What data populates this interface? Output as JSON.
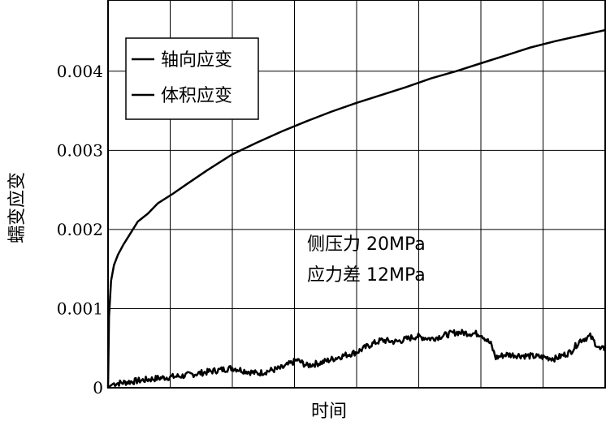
{
  "chart_data": {
    "type": "line",
    "xlabel": "时间",
    "ylabel": "蠕变应变",
    "ylim": [
      0,
      0.0049
    ],
    "yticks": [
      {
        "value": 0,
        "label": "0"
      },
      {
        "value": 0.001,
        "label": "0.001"
      },
      {
        "value": 0.002,
        "label": "0.002"
      },
      {
        "value": 0.003,
        "label": "0.003"
      },
      {
        "value": 0.004,
        "label": "0.004"
      }
    ],
    "x_gridlines": 7,
    "grid": true,
    "legend_position": "top-left",
    "legend": [
      "轴向应变",
      "体积应变"
    ],
    "annotations": [
      "侧压力 20MPa",
      "应力差 12MPa"
    ],
    "series": [
      {
        "name": "轴向应变",
        "color": "#000000",
        "x": [
          0,
          0.002,
          0.006,
          0.012,
          0.02,
          0.03,
          0.045,
          0.06,
          0.08,
          0.1,
          0.13,
          0.16,
          0.2,
          0.25,
          0.3,
          0.35,
          0.4,
          0.45,
          0.5,
          0.55,
          0.6,
          0.65,
          0.7,
          0.75,
          0.8,
          0.85,
          0.9,
          0.95,
          1.0
        ],
        "values": [
          0,
          0.0009,
          0.00135,
          0.00155,
          0.00168,
          0.0018,
          0.00195,
          0.0021,
          0.0022,
          0.00233,
          0.00245,
          0.00258,
          0.00275,
          0.00295,
          0.0031,
          0.00324,
          0.00337,
          0.00349,
          0.0036,
          0.0037,
          0.0038,
          0.00391,
          0.004,
          0.0041,
          0.0042,
          0.0043,
          0.00438,
          0.00445,
          0.00452
        ]
      },
      {
        "name": "体积应变",
        "color": "#000000",
        "x": [
          0,
          0.01,
          0.05,
          0.1,
          0.15,
          0.2,
          0.25,
          0.3,
          0.35,
          0.38,
          0.4,
          0.43,
          0.47,
          0.5,
          0.53,
          0.55,
          0.58,
          0.62,
          0.65,
          0.7,
          0.75,
          0.77,
          0.78,
          0.8,
          0.85,
          0.9,
          0.93,
          0.95,
          0.97,
          0.99,
          1.0
        ],
        "values": [
          0,
          5e-05,
          8e-05,
          0.00012,
          0.00015,
          0.0002,
          0.00025,
          0.00018,
          0.00025,
          0.00035,
          0.00028,
          0.00032,
          0.0004,
          0.00045,
          0.00055,
          0.0006,
          0.00058,
          0.00065,
          0.00062,
          0.0007,
          0.00068,
          0.00055,
          0.00038,
          0.00042,
          0.0004,
          0.00037,
          0.00045,
          0.0006,
          0.00065,
          0.00048,
          0.0005
        ]
      }
    ]
  }
}
